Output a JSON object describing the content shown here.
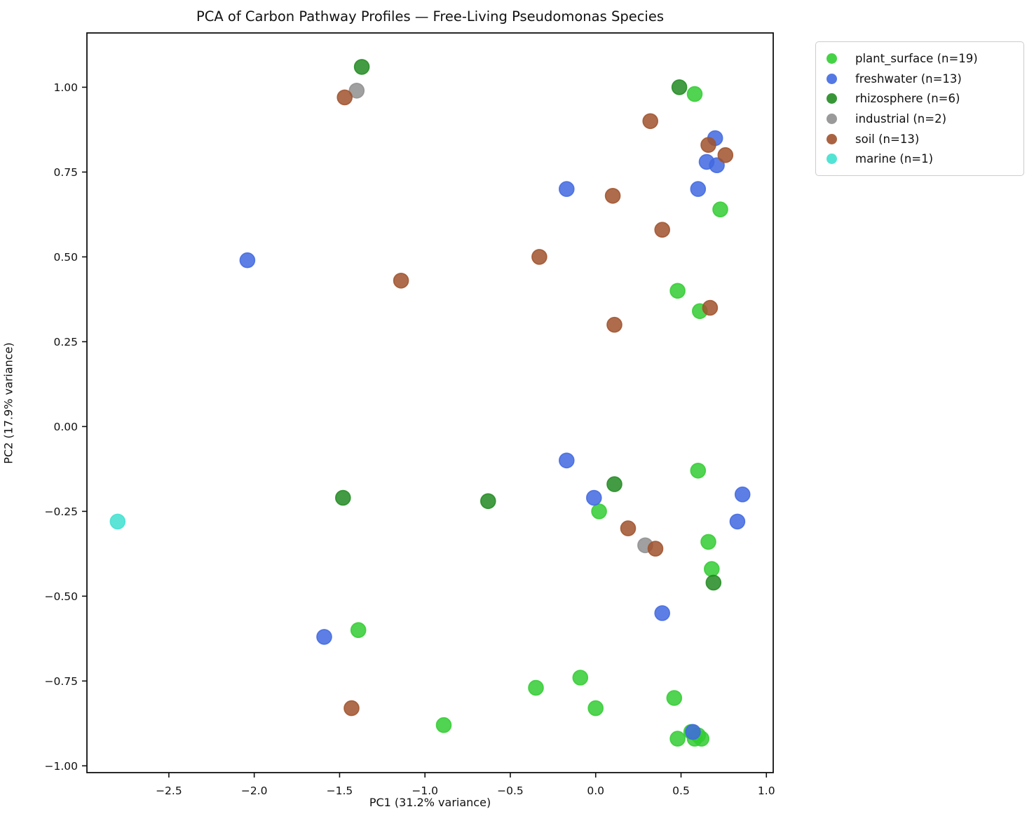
{
  "chart_data": {
    "type": "scatter",
    "title": "PCA of Carbon Pathway Profiles — Free-Living Pseudomonas Species",
    "xlabel": "PC1 (31.2% variance)",
    "ylabel": "PC2 (17.9% variance)",
    "xlim": [
      -2.98,
      1.04
    ],
    "ylim": [
      -1.02,
      1.16
    ],
    "grid": false,
    "legend_position": "outside-upper-right",
    "marker": {
      "radius_px": 10.5,
      "opacity": 0.85
    },
    "xticks": {
      "values": [
        -2.5,
        -2.0,
        -1.5,
        -1.0,
        -0.5,
        0.0,
        0.5,
        1.0
      ],
      "labels": [
        "−2.5",
        "−2.0",
        "−1.5",
        "−1.0",
        "−0.5",
        "0.0",
        "0.5",
        "1.0"
      ]
    },
    "yticks": {
      "values": [
        1.0,
        0.75,
        0.5,
        0.25,
        0.0,
        -0.25,
        -0.5,
        -0.75,
        -1.0
      ],
      "labels": [
        "1.00",
        "0.75",
        "0.50",
        "0.25",
        "0.00",
        "−0.25",
        "−0.50",
        "−0.75",
        "−1.00"
      ]
    },
    "series": [
      {
        "name": "plant_surface",
        "legend_label": "plant_surface (n=19)",
        "color": "#32CD32",
        "n": 19,
        "points": [
          [
            0.58,
            0.98
          ],
          [
            0.73,
            0.64
          ],
          [
            0.48,
            0.4
          ],
          [
            0.61,
            0.34
          ],
          [
            0.6,
            -0.13
          ],
          [
            0.02,
            -0.25
          ],
          [
            0.66,
            -0.34
          ],
          [
            0.68,
            -0.42
          ],
          [
            -1.39,
            -0.6
          ],
          [
            -0.09,
            -0.74
          ],
          [
            -0.35,
            -0.77
          ],
          [
            0.46,
            -0.8
          ],
          [
            0.0,
            -0.83
          ],
          [
            -0.89,
            -0.88
          ],
          [
            0.48,
            -0.92
          ],
          [
            0.56,
            -0.9
          ],
          [
            0.58,
            -0.92
          ],
          [
            0.6,
            -0.91
          ],
          [
            0.62,
            -0.92
          ]
        ]
      },
      {
        "name": "freshwater",
        "legend_label": "freshwater (n=13)",
        "color": "#4169E1",
        "n": 13,
        "points": [
          [
            0.7,
            0.85
          ],
          [
            0.65,
            0.78
          ],
          [
            0.71,
            0.77
          ],
          [
            0.6,
            0.7
          ],
          [
            -0.17,
            0.7
          ],
          [
            -2.04,
            0.49
          ],
          [
            -0.17,
            -0.1
          ],
          [
            -0.01,
            -0.21
          ],
          [
            0.86,
            -0.2
          ],
          [
            0.83,
            -0.28
          ],
          [
            0.39,
            -0.55
          ],
          [
            -1.59,
            -0.62
          ],
          [
            0.57,
            -0.9
          ]
        ]
      },
      {
        "name": "rhizosphere",
        "legend_label": "rhizosphere (n=6)",
        "color": "#228B22",
        "n": 6,
        "points": [
          [
            -1.37,
            1.06
          ],
          [
            0.49,
            1.0
          ],
          [
            0.11,
            -0.17
          ],
          [
            -0.63,
            -0.22
          ],
          [
            -1.48,
            -0.21
          ],
          [
            0.69,
            -0.46
          ]
        ]
      },
      {
        "name": "industrial",
        "legend_label": "industrial (n=2)",
        "color": "#8f8f8f",
        "n": 2,
        "points": [
          [
            -1.4,
            0.99
          ],
          [
            0.29,
            -0.35
          ]
        ]
      },
      {
        "name": "soil",
        "legend_label": "soil (n=13)",
        "color": "#A0522D",
        "n": 13,
        "points": [
          [
            -1.47,
            0.97
          ],
          [
            0.32,
            0.9
          ],
          [
            0.66,
            0.83
          ],
          [
            0.76,
            0.8
          ],
          [
            0.1,
            0.68
          ],
          [
            0.39,
            0.58
          ],
          [
            -0.33,
            0.5
          ],
          [
            -1.14,
            0.43
          ],
          [
            0.67,
            0.35
          ],
          [
            0.11,
            0.3
          ],
          [
            0.19,
            -0.3
          ],
          [
            0.35,
            -0.36
          ],
          [
            -1.43,
            -0.83
          ]
        ]
      },
      {
        "name": "marine",
        "legend_label": "marine (n=1)",
        "color": "#40E0D0",
        "n": 1,
        "points": [
          [
            -2.8,
            -0.28
          ]
        ]
      }
    ],
    "axis_color": "#101010"
  }
}
